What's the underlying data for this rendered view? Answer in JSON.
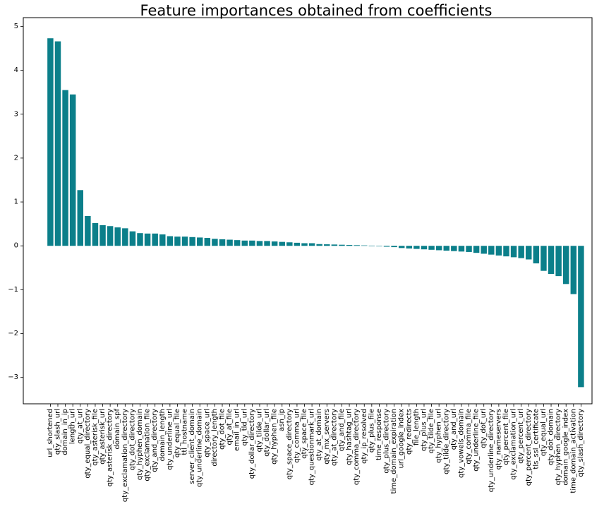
{
  "chart_data": {
    "type": "bar",
    "title": "Feature importances obtained from coefficients",
    "xlabel": "",
    "ylabel": "",
    "ylim": [
      -3.6,
      5.2
    ],
    "yticks": [
      5,
      4,
      3,
      2,
      1,
      0,
      -1,
      -2,
      -3
    ],
    "ytick_labels": [
      "5",
      "4",
      "3",
      "2",
      "1",
      "0",
      "−1",
      "−2",
      "−3"
    ],
    "bar_color": "#0b7f8a",
    "grid": false,
    "categories": [
      "url_shortened",
      "qty_slash_url",
      "domain_in_ip",
      "length_url",
      "qty_at_url",
      "qty_equal_directory",
      "qty_asterisk_file",
      "qty_asterisk_url",
      "qty_asterisk_directory",
      "domain_spf",
      "qty_exclamation_directory",
      "qty_dot_directory",
      "qty_hyphen_domain",
      "qty_exclamation_file",
      "qty_and_directory",
      "domain_length",
      "qty_underline_url",
      "qty_equal_file",
      "ttl_hostname",
      "server_client_domain",
      "qty_underline_domain",
      "qty_space_url",
      "directory_length",
      "qty_dot_file",
      "qty_at_file",
      "email_in_url",
      "qty_tld_url",
      "qty_dollar_directory",
      "qty_tilde_url",
      "qty_dollar_url",
      "qty_hyphen_file",
      "asn_ip",
      "qty_space_directory",
      "qty_comma_url",
      "qty_space_file",
      "qty_questionmark_url",
      "qty_at_domain",
      "qty_mx_servers",
      "qty_at_directory",
      "qty_and_file",
      "qty_hashtag_url",
      "qty_comma_directory",
      "qty_ip_resolved",
      "qty_plus_file",
      "time_response",
      "qty_plus_directory",
      "time_domain_expiration",
      "url_google_index",
      "qty_redirects",
      "file_length",
      "qty_plus_url",
      "qty_tilde_file",
      "qty_hyphen_url",
      "qty_tilde_directory",
      "qty_and_url",
      "qty_vowels_domain",
      "qty_comma_file",
      "qty_underline_file",
      "qty_dot_url",
      "qty_underline_directory",
      "qty_nameservers",
      "qty_percent_file",
      "qty_exclamation_url",
      "qty_percent_url",
      "qty_percent_directory",
      "tls_ssl_certificate",
      "qty_equal_url",
      "qty_dot_domain",
      "qty_hyphen_directory",
      "domain_google_index",
      "time_domain_activation",
      "qty_slash_directory"
    ],
    "values": [
      4.73,
      4.66,
      3.55,
      3.45,
      1.27,
      0.68,
      0.52,
      0.47,
      0.45,
      0.42,
      0.4,
      0.33,
      0.29,
      0.28,
      0.28,
      0.26,
      0.22,
      0.21,
      0.21,
      0.2,
      0.19,
      0.18,
      0.16,
      0.15,
      0.14,
      0.13,
      0.12,
      0.12,
      0.11,
      0.11,
      0.1,
      0.09,
      0.08,
      0.07,
      0.06,
      0.06,
      0.04,
      0.035,
      0.03,
      0.025,
      0.02,
      0.015,
      0.01,
      0.005,
      -0.01,
      -0.02,
      -0.03,
      -0.05,
      -0.06,
      -0.07,
      -0.08,
      -0.09,
      -0.1,
      -0.11,
      -0.12,
      -0.13,
      -0.14,
      -0.16,
      -0.18,
      -0.2,
      -0.22,
      -0.24,
      -0.26,
      -0.28,
      -0.31,
      -0.4,
      -0.57,
      -0.64,
      -0.69,
      -0.87,
      -1.1,
      -3.22
    ]
  }
}
